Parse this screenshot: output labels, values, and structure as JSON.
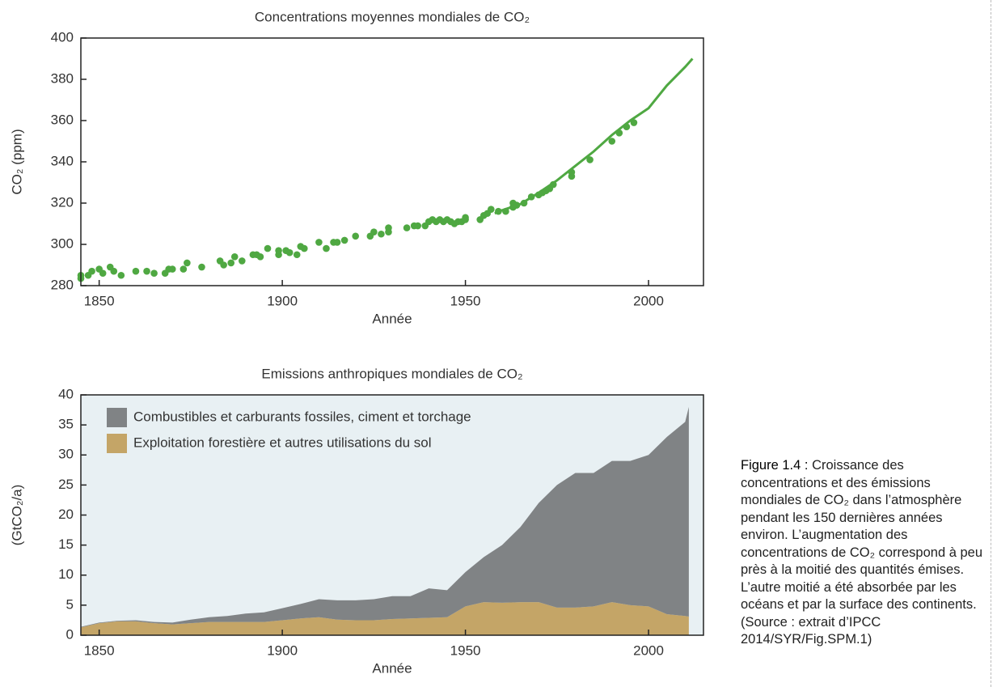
{
  "chart_data": [
    {
      "type": "scatter",
      "title": "Concentrations moyennes mondiales de CO₂",
      "x_label": "Année",
      "y_label": "CO₂ (ppm)",
      "xlim": [
        1845,
        2015
      ],
      "xticks": [
        1850,
        1900,
        1950,
        2000
      ],
      "ylim": [
        280,
        400
      ],
      "yticks": [
        280,
        300,
        320,
        340,
        360,
        380,
        400
      ],
      "series": [
        {
          "color": "#4fa842",
          "style": "markers",
          "x": [
            1845,
            1845,
            1847,
            1848,
            1850,
            1851,
            1853,
            1854,
            1856,
            1860,
            1863,
            1865,
            1868,
            1869,
            1870,
            1873,
            1874,
            1878,
            1883,
            1884,
            1886,
            1887,
            1889,
            1892,
            1893,
            1894,
            1896,
            1899,
            1899,
            1901,
            1902,
            1904,
            1905,
            1906,
            1910,
            1912,
            1914,
            1915,
            1917,
            1920,
            1924,
            1925,
            1927,
            1929,
            1929,
            1934,
            1936,
            1937,
            1939,
            1940,
            1941,
            1942,
            1943,
            1944,
            1945,
            1946,
            1947,
            1948,
            1949,
            1950,
            1950,
            1954,
            1955,
            1956,
            1957,
            1959,
            1961,
            1963,
            1963,
            1964,
            1966,
            1968,
            1970,
            1971,
            1972,
            1973,
            1974,
            1979,
            1979,
            1984,
            1990,
            1992,
            1994,
            1996
          ],
          "values": [
            283.5,
            285,
            285,
            287,
            288,
            286,
            289,
            287,
            285,
            287,
            287,
            286,
            286,
            288,
            288,
            288,
            291,
            289,
            292,
            290,
            291,
            294,
            292,
            295,
            295,
            294,
            298,
            295,
            297,
            297,
            296,
            295,
            299,
            298,
            301,
            298,
            301,
            301,
            302,
            304,
            304,
            306,
            305,
            306,
            308,
            308,
            309,
            309,
            309,
            311,
            312,
            311,
            312,
            311,
            312,
            311,
            310,
            311,
            311,
            312,
            313,
            312,
            314,
            315,
            317,
            316,
            316,
            318,
            320,
            319,
            320,
            323,
            324,
            325,
            326,
            327,
            329,
            333,
            335,
            341,
            350,
            354,
            357,
            359
          ]
        },
        {
          "color": "#4fa842",
          "style": "line",
          "x": [
            1958,
            1960,
            1965,
            1970,
            1975,
            1980,
            1985,
            1990,
            1995,
            2000,
            2005,
            2010,
            2012
          ],
          "values": [
            315,
            316.5,
            319.5,
            325,
            331,
            338,
            345,
            353,
            360,
            366,
            377,
            386,
            390
          ]
        }
      ]
    },
    {
      "type": "stacked-area",
      "title": "Emissions anthropiques mondiales de CO₂",
      "x_label": "Année",
      "y_label": "(GtCO₂/a)",
      "xlim": [
        1845,
        2015
      ],
      "xticks": [
        1850,
        1900,
        1950,
        2000
      ],
      "ylim": [
        0,
        40
      ],
      "yticks": [
        0,
        5,
        10,
        15,
        20,
        25,
        30,
        35,
        40
      ],
      "background": "#e8f0f3",
      "legend": "upper left",
      "x": [
        1845,
        1850,
        1855,
        1860,
        1865,
        1870,
        1875,
        1880,
        1885,
        1890,
        1895,
        1900,
        1905,
        1910,
        1915,
        1920,
        1925,
        1930,
        1935,
        1940,
        1945,
        1950,
        1955,
        1960,
        1965,
        1970,
        1975,
        1980,
        1985,
        1990,
        1995,
        2000,
        2005,
        2010,
        2011
      ],
      "series": [
        {
          "name": "Exploitation forestière et autres utilisations du sol",
          "color": "#c4a567",
          "values": [
            1.3,
            2.0,
            2.3,
            2.3,
            2.0,
            1.8,
            2.0,
            2.2,
            2.2,
            2.2,
            2.2,
            2.5,
            2.8,
            3.0,
            2.6,
            2.5,
            2.5,
            2.7,
            2.8,
            2.9,
            3.0,
            4.8,
            5.5,
            5.4,
            5.5,
            5.5,
            4.6,
            4.6,
            4.8,
            5.5,
            5.0,
            4.8,
            3.5,
            3.2,
            3.1
          ]
        },
        {
          "name": "Combustibles et carburants fossiles, ciment et torchage",
          "color": "#808385",
          "values": [
            0.1,
            0.1,
            0.1,
            0.2,
            0.2,
            0.3,
            0.6,
            0.8,
            1.0,
            1.4,
            1.6,
            2.0,
            2.4,
            3.0,
            3.2,
            3.3,
            3.5,
            3.8,
            3.7,
            4.9,
            4.5,
            5.7,
            7.5,
            9.6,
            12.5,
            16.5,
            20.4,
            22.4,
            22.2,
            23.5,
            24.0,
            25.2,
            29.5,
            32.3,
            34.9
          ]
        }
      ]
    }
  ],
  "caption": {
    "label": "Figure 1.4 :",
    "text": "Croissance des concentrations et des émissions mondiales de CO₂ dans l’atmosphère pendant les 150 dernières années environ. L’augmentation des concentrations de CO₂ correspond à peu près à la moitié des quantités émises. L’autre moitié a été absorbée par les océans et par la surface des continents. (Source : extrait d’IPCC 2014/SYR/Fig.SPM.1)"
  }
}
